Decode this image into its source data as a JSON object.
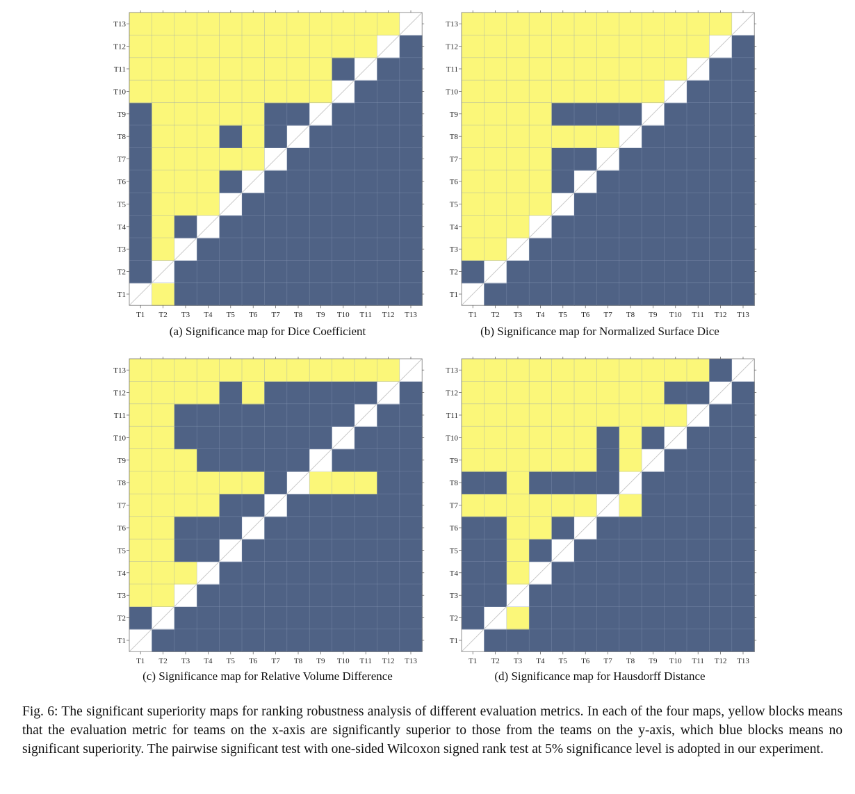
{
  "figure": {
    "caption": "Fig. 6: The significant superiority maps for ranking robustness analysis of different evaluation metrics. In each of the four maps, yellow blocks means that the evaluation metric for teams on the x-axis are significantly superior to those from the teams on the y-axis, which blue blocks means no significant superiority. The pairwise significant test with one-sided Wilcoxon signed rank test at 5% significance level is adopted in our experiment."
  },
  "colors": {
    "yellow": "#fbf779",
    "blue": "#4f6285",
    "diagonal": "#ffffff",
    "grid": "#8a9bb8"
  },
  "chart_data": [
    {
      "type": "heatmap",
      "caption": "(a) Significance map for Dice Coefficient",
      "x_labels": [
        "T1",
        "T2",
        "T3",
        "T4",
        "T5",
        "T6",
        "T7",
        "T8",
        "T9",
        "T10",
        "T11",
        "T12",
        "T13"
      ],
      "y_labels": [
        "T1",
        "T2",
        "T3",
        "T4",
        "T5",
        "T6",
        "T7",
        "T8",
        "T9",
        "T10",
        "T11",
        "T12",
        "T13"
      ],
      "value_meaning": "1 = significantly superior (yellow), 0 = no significant superiority (blue), -1 = diagonal; row = y-axis team, column = x-axis team",
      "matrix": [
        [
          -1,
          1,
          0,
          0,
          0,
          0,
          0,
          0,
          0,
          0,
          0,
          0,
          0
        ],
        [
          0,
          -1,
          0,
          0,
          0,
          0,
          0,
          0,
          0,
          0,
          0,
          0,
          0
        ],
        [
          0,
          1,
          -1,
          0,
          0,
          0,
          0,
          0,
          0,
          0,
          0,
          0,
          0
        ],
        [
          0,
          1,
          0,
          -1,
          0,
          0,
          0,
          0,
          0,
          0,
          0,
          0,
          0
        ],
        [
          0,
          1,
          1,
          1,
          -1,
          0,
          0,
          0,
          0,
          0,
          0,
          0,
          0
        ],
        [
          0,
          1,
          1,
          1,
          0,
          -1,
          0,
          0,
          0,
          0,
          0,
          0,
          0
        ],
        [
          0,
          1,
          1,
          1,
          1,
          1,
          -1,
          0,
          0,
          0,
          0,
          0,
          0
        ],
        [
          0,
          1,
          1,
          1,
          0,
          1,
          0,
          -1,
          0,
          0,
          0,
          0,
          0
        ],
        [
          0,
          1,
          1,
          1,
          1,
          1,
          0,
          0,
          -1,
          0,
          0,
          0,
          0
        ],
        [
          1,
          1,
          1,
          1,
          1,
          1,
          1,
          1,
          1,
          -1,
          0,
          0,
          0
        ],
        [
          1,
          1,
          1,
          1,
          1,
          1,
          1,
          1,
          1,
          0,
          -1,
          0,
          0
        ],
        [
          1,
          1,
          1,
          1,
          1,
          1,
          1,
          1,
          1,
          1,
          1,
          -1,
          0
        ],
        [
          1,
          1,
          1,
          1,
          1,
          1,
          1,
          1,
          1,
          1,
          1,
          1,
          -1
        ]
      ]
    },
    {
      "type": "heatmap",
      "caption": "(b) Significance map for Normalized Surface Dice",
      "x_labels": [
        "T1",
        "T2",
        "T3",
        "T4",
        "T5",
        "T6",
        "T7",
        "T8",
        "T9",
        "T10",
        "T11",
        "T12",
        "T13"
      ],
      "y_labels": [
        "T1",
        "T2",
        "T3",
        "T4",
        "T5",
        "T6",
        "T7",
        "T8",
        "T9",
        "T10",
        "T11",
        "T12",
        "T13"
      ],
      "matrix": [
        [
          -1,
          0,
          0,
          0,
          0,
          0,
          0,
          0,
          0,
          0,
          0,
          0,
          0
        ],
        [
          0,
          -1,
          0,
          0,
          0,
          0,
          0,
          0,
          0,
          0,
          0,
          0,
          0
        ],
        [
          1,
          1,
          -1,
          0,
          0,
          0,
          0,
          0,
          0,
          0,
          0,
          0,
          0
        ],
        [
          1,
          1,
          1,
          -1,
          0,
          0,
          0,
          0,
          0,
          0,
          0,
          0,
          0
        ],
        [
          1,
          1,
          1,
          1,
          -1,
          0,
          0,
          0,
          0,
          0,
          0,
          0,
          0
        ],
        [
          1,
          1,
          1,
          1,
          0,
          -1,
          0,
          0,
          0,
          0,
          0,
          0,
          0
        ],
        [
          1,
          1,
          1,
          1,
          0,
          0,
          -1,
          0,
          0,
          0,
          0,
          0,
          0
        ],
        [
          1,
          1,
          1,
          1,
          1,
          1,
          1,
          -1,
          0,
          0,
          0,
          0,
          0
        ],
        [
          1,
          1,
          1,
          1,
          0,
          0,
          0,
          0,
          -1,
          0,
          0,
          0,
          0
        ],
        [
          1,
          1,
          1,
          1,
          1,
          1,
          1,
          1,
          1,
          -1,
          0,
          0,
          0
        ],
        [
          1,
          1,
          1,
          1,
          1,
          1,
          1,
          1,
          1,
          1,
          -1,
          0,
          0
        ],
        [
          1,
          1,
          1,
          1,
          1,
          1,
          1,
          1,
          1,
          1,
          1,
          -1,
          0
        ],
        [
          1,
          1,
          1,
          1,
          1,
          1,
          1,
          1,
          1,
          1,
          1,
          1,
          -1
        ]
      ]
    },
    {
      "type": "heatmap",
      "caption": "(c) Significance map for Relative Volume Difference",
      "x_labels": [
        "T1",
        "T2",
        "T3",
        "T4",
        "T5",
        "T6",
        "T7",
        "T8",
        "T9",
        "T10",
        "T11",
        "T12",
        "T13"
      ],
      "y_labels": [
        "T1",
        "T2",
        "T3",
        "T4",
        "T5",
        "T6",
        "T7",
        "T8",
        "T9",
        "T10",
        "T11",
        "T12",
        "T13"
      ],
      "matrix": [
        [
          -1,
          0,
          0,
          0,
          0,
          0,
          0,
          0,
          0,
          0,
          0,
          0,
          0
        ],
        [
          0,
          -1,
          0,
          0,
          0,
          0,
          0,
          0,
          0,
          0,
          0,
          0,
          0
        ],
        [
          1,
          1,
          -1,
          0,
          0,
          0,
          0,
          0,
          0,
          0,
          0,
          0,
          0
        ],
        [
          1,
          1,
          1,
          -1,
          0,
          0,
          0,
          0,
          0,
          0,
          0,
          0,
          0
        ],
        [
          1,
          1,
          0,
          0,
          -1,
          0,
          0,
          0,
          0,
          0,
          0,
          0,
          0
        ],
        [
          1,
          1,
          0,
          0,
          0,
          -1,
          0,
          0,
          0,
          0,
          0,
          0,
          0
        ],
        [
          1,
          1,
          1,
          1,
          0,
          0,
          -1,
          0,
          0,
          0,
          0,
          0,
          0
        ],
        [
          1,
          1,
          1,
          1,
          1,
          1,
          0,
          -1,
          1,
          1,
          1,
          0,
          0
        ],
        [
          1,
          1,
          1,
          0,
          0,
          0,
          0,
          0,
          -1,
          0,
          0,
          0,
          0
        ],
        [
          1,
          1,
          0,
          0,
          0,
          0,
          0,
          0,
          0,
          -1,
          0,
          0,
          0
        ],
        [
          1,
          1,
          0,
          0,
          0,
          0,
          0,
          0,
          0,
          0,
          -1,
          0,
          0
        ],
        [
          1,
          1,
          1,
          1,
          0,
          1,
          0,
          0,
          0,
          0,
          0,
          -1,
          0
        ],
        [
          1,
          1,
          1,
          1,
          1,
          1,
          1,
          1,
          1,
          1,
          1,
          1,
          -1
        ]
      ]
    },
    {
      "type": "heatmap",
      "caption": "(d) Significance map for Hausdorff Distance",
      "x_labels": [
        "T1",
        "T2",
        "T3",
        "T4",
        "T5",
        "T6",
        "T7",
        "T8",
        "T9",
        "T10",
        "T11",
        "T12",
        "T13"
      ],
      "y_labels": [
        "T1",
        "T2",
        "T3",
        "T4",
        "T5",
        "T6",
        "T7",
        "T8",
        "T9",
        "T10",
        "T11",
        "T12",
        "T13"
      ],
      "matrix": [
        [
          -1,
          0,
          0,
          0,
          0,
          0,
          0,
          0,
          0,
          0,
          0,
          0,
          0
        ],
        [
          0,
          -1,
          1,
          0,
          0,
          0,
          0,
          0,
          0,
          0,
          0,
          0,
          0
        ],
        [
          0,
          0,
          -1,
          0,
          0,
          0,
          0,
          0,
          0,
          0,
          0,
          0,
          0
        ],
        [
          0,
          0,
          1,
          -1,
          0,
          0,
          0,
          0,
          0,
          0,
          0,
          0,
          0
        ],
        [
          0,
          0,
          1,
          0,
          -1,
          0,
          0,
          0,
          0,
          0,
          0,
          0,
          0
        ],
        [
          0,
          0,
          1,
          1,
          0,
          -1,
          0,
          0,
          0,
          0,
          0,
          0,
          0
        ],
        [
          1,
          1,
          1,
          1,
          1,
          1,
          -1,
          1,
          0,
          0,
          0,
          0,
          0
        ],
        [
          0,
          0,
          1,
          0,
          0,
          0,
          0,
          -1,
          0,
          0,
          0,
          0,
          0
        ],
        [
          1,
          1,
          1,
          1,
          1,
          1,
          0,
          1,
          -1,
          0,
          0,
          0,
          0
        ],
        [
          1,
          1,
          1,
          1,
          1,
          1,
          0,
          1,
          0,
          -1,
          0,
          0,
          0
        ],
        [
          1,
          1,
          1,
          1,
          1,
          1,
          1,
          1,
          1,
          1,
          -1,
          0,
          0
        ],
        [
          1,
          1,
          1,
          1,
          1,
          1,
          1,
          1,
          1,
          0,
          0,
          -1,
          0
        ],
        [
          1,
          1,
          1,
          1,
          1,
          1,
          1,
          1,
          1,
          1,
          1,
          0,
          -1
        ]
      ]
    }
  ]
}
